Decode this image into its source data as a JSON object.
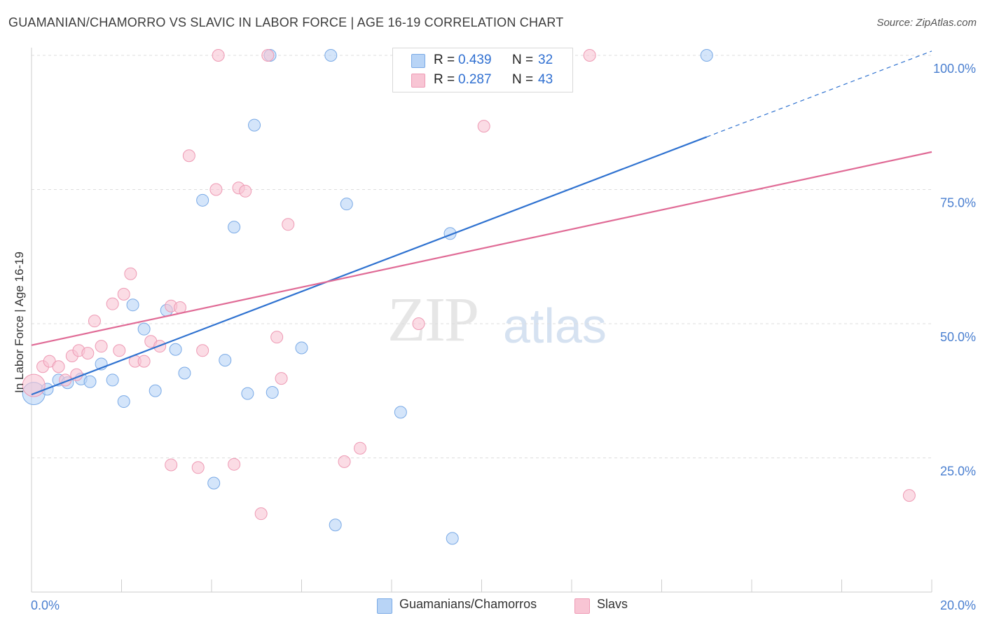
{
  "title": "GUAMANIAN/CHAMORRO VS SLAVIC IN LABOR FORCE | AGE 16-19 CORRELATION CHART",
  "source": "Source: ZipAtlas.com",
  "watermark": {
    "left": "ZIP",
    "right": "atlas"
  },
  "legend": {
    "series1": {
      "r_label": "R =",
      "r_value": "0.439",
      "n_label": "N =",
      "n_value": "32"
    },
    "series2": {
      "r_label": "R =",
      "r_value": "0.287",
      "n_label": "N =",
      "n_value": "43"
    }
  },
  "colors": {
    "blue_fill": "#b8d4f6",
    "blue_stroke": "#7aaae6",
    "blue_line": "#2f72d0",
    "pink_fill": "#f8c5d4",
    "pink_stroke": "#ee9ab4",
    "pink_line": "#e06b96",
    "grid": "#dddddd",
    "tick_text": "#4a7fd0"
  },
  "chart_data": {
    "type": "scatter",
    "title": "GUAMANIAN/CHAMORRO VS SLAVIC IN LABOR FORCE | AGE 16-19 CORRELATION CHART",
    "xlabel": "",
    "ylabel": "In Labor Force | Age 16-19",
    "xlim": [
      0,
      20
    ],
    "ylim": [
      0,
      103
    ],
    "x_tick_labels": [
      {
        "value": 0,
        "label": "0.0%"
      },
      {
        "value": 20,
        "label": "20.0%"
      }
    ],
    "y_tick_labels": [
      {
        "value": 25,
        "label": "25.0%"
      },
      {
        "value": 50,
        "label": "50.0%"
      },
      {
        "value": 75,
        "label": "75.0%"
      },
      {
        "value": 100,
        "label": "100.0%"
      }
    ],
    "grid": true,
    "legend_position": "top-center",
    "series": [
      {
        "name": "Guamanians/Chamorros",
        "color": "blue",
        "trend": {
          "x0": 0,
          "y0": 36.8,
          "x1": 15,
          "y1": 84.8,
          "dashed_to_x": 20,
          "dashed_to_y": 100.8
        },
        "points": [
          [
            0.05,
            37.0
          ],
          [
            0.35,
            37.8
          ],
          [
            0.6,
            39.5
          ],
          [
            0.8,
            39.0
          ],
          [
            1.1,
            39.7
          ],
          [
            1.3,
            39.2
          ],
          [
            1.55,
            42.5
          ],
          [
            1.8,
            39.5
          ],
          [
            2.05,
            35.5
          ],
          [
            2.25,
            53.5
          ],
          [
            2.5,
            49.0
          ],
          [
            2.75,
            37.5
          ],
          [
            3.0,
            52.5
          ],
          [
            3.2,
            45.2
          ],
          [
            3.4,
            40.8
          ],
          [
            3.8,
            73.0
          ],
          [
            4.3,
            43.2
          ],
          [
            4.05,
            20.3
          ],
          [
            4.5,
            68.0
          ],
          [
            4.8,
            37.0
          ],
          [
            4.95,
            87.0
          ],
          [
            5.3,
            100.0
          ],
          [
            5.35,
            37.2
          ],
          [
            6.0,
            45.5
          ],
          [
            6.65,
            100.0
          ],
          [
            6.75,
            12.5
          ],
          [
            7.0,
            72.3
          ],
          [
            8.2,
            33.5
          ],
          [
            9.3,
            66.8
          ],
          [
            9.35,
            10.0
          ],
          [
            10.05,
            100.0
          ],
          [
            15.0,
            100.0
          ]
        ]
      },
      {
        "name": "Slavs",
        "color": "pink",
        "trend": {
          "x0": 0,
          "y0": 46.0,
          "x1": 20,
          "y1": 82.0
        },
        "points": [
          [
            0.05,
            38.5
          ],
          [
            0.25,
            42.0
          ],
          [
            0.4,
            43.0
          ],
          [
            0.6,
            42.0
          ],
          [
            0.75,
            39.5
          ],
          [
            0.9,
            44.0
          ],
          [
            1.05,
            45.0
          ],
          [
            1.25,
            44.5
          ],
          [
            1.4,
            50.5
          ],
          [
            1.55,
            45.8
          ],
          [
            1.8,
            53.7
          ],
          [
            1.95,
            45.0
          ],
          [
            2.05,
            55.5
          ],
          [
            2.2,
            59.3
          ],
          [
            2.3,
            43.0
          ],
          [
            2.5,
            43.0
          ],
          [
            2.65,
            46.7
          ],
          [
            2.85,
            45.8
          ],
          [
            3.1,
            53.3
          ],
          [
            3.3,
            53.0
          ],
          [
            3.1,
            23.7
          ],
          [
            3.5,
            81.3
          ],
          [
            3.7,
            23.2
          ],
          [
            3.8,
            45.0
          ],
          [
            4.15,
            100.0
          ],
          [
            4.1,
            75.0
          ],
          [
            4.5,
            23.8
          ],
          [
            4.6,
            75.3
          ],
          [
            4.75,
            74.7
          ],
          [
            5.25,
            100.0
          ],
          [
            5.1,
            14.6
          ],
          [
            5.45,
            47.5
          ],
          [
            5.55,
            39.8
          ],
          [
            5.7,
            68.5
          ],
          [
            6.95,
            24.3
          ],
          [
            7.3,
            26.8
          ],
          [
            8.6,
            50.0
          ],
          [
            9.3,
            100.0
          ],
          [
            10.05,
            86.8
          ],
          [
            10.3,
            100.0
          ],
          [
            12.4,
            100.0
          ],
          [
            19.5,
            18.0
          ],
          [
            1.0,
            40.5
          ]
        ]
      }
    ]
  },
  "bottom_legend": {
    "series1": "Guamanians/Chamorros",
    "series2": "Slavs"
  }
}
